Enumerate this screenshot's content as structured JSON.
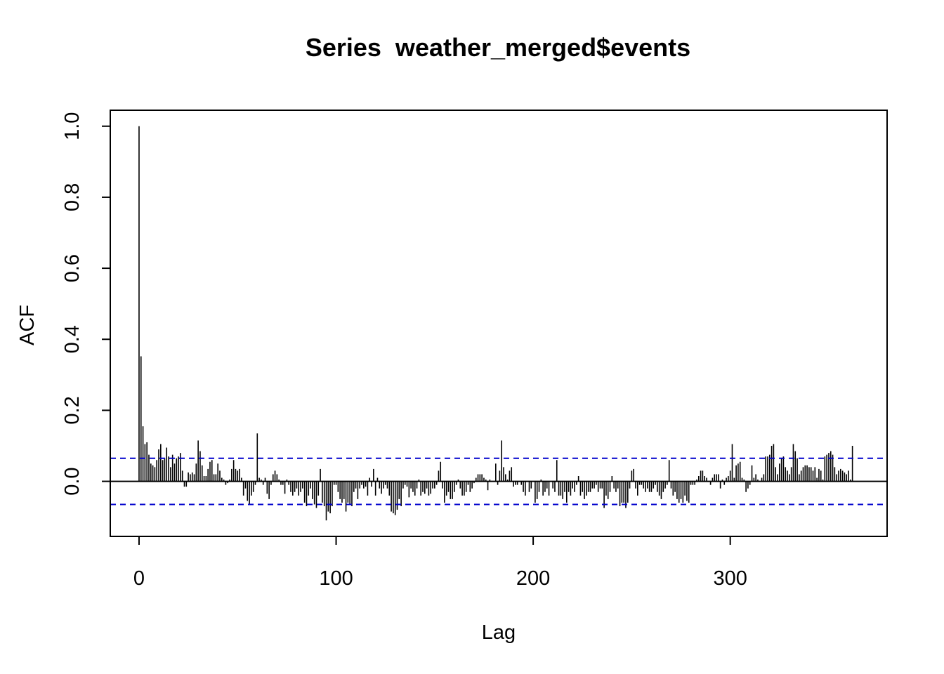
{
  "chart_data": {
    "type": "bar",
    "title": "Series  weather_merged$events",
    "xlabel": "Lag",
    "ylabel": "ACF",
    "xlim": [
      -14.6,
      379.6
    ],
    "ylim": [
      -0.155,
      1.045
    ],
    "x_ticks": [
      0,
      100,
      200,
      300
    ],
    "x_tick_labels": [
      "0",
      "100",
      "200",
      "300"
    ],
    "y_ticks": [
      0.0,
      0.2,
      0.4,
      0.6,
      0.8,
      1.0
    ],
    "y_tick_labels": [
      "0.0",
      "0.2",
      "0.4",
      "0.6",
      "0.8",
      "1.0"
    ],
    "confidence_interval": 0.065,
    "ci_color": "#0000cc",
    "bar_color": "#000000",
    "grid": false,
    "lags_start": 0,
    "values": [
      1.0,
      0.352,
      0.155,
      0.105,
      0.11,
      0.075,
      0.05,
      0.045,
      0.04,
      0.06,
      0.09,
      0.105,
      0.06,
      0.065,
      0.095,
      0.07,
      0.04,
      0.075,
      0.05,
      0.065,
      0.07,
      0.08,
      0.03,
      -0.015,
      -0.015,
      0.025,
      0.02,
      0.025,
      0.02,
      0.05,
      0.115,
      0.085,
      0.045,
      0.015,
      0.015,
      0.035,
      0.055,
      0.06,
      0.02,
      0.02,
      0.05,
      0.03,
      0.01,
      0.005,
      -0.01,
      -0.005,
      0.005,
      0.035,
      0.06,
      0.035,
      0.03,
      0.035,
      0.01,
      -0.04,
      -0.02,
      -0.055,
      -0.065,
      -0.04,
      -0.03,
      -0.01,
      0.135,
      0.01,
      0.005,
      -0.01,
      0.01,
      -0.035,
      -0.05,
      -0.01,
      0.02,
      0.03,
      0.02,
      0.005,
      -0.01,
      -0.01,
      -0.035,
      0.005,
      -0.01,
      -0.03,
      -0.04,
      -0.03,
      -0.02,
      -0.04,
      -0.03,
      -0.02,
      -0.06,
      -0.07,
      -0.04,
      -0.02,
      -0.05,
      -0.065,
      -0.075,
      -0.04,
      0.035,
      -0.06,
      -0.07,
      -0.11,
      -0.085,
      -0.09,
      -0.07,
      -0.01,
      -0.01,
      -0.03,
      -0.05,
      -0.06,
      -0.05,
      -0.085,
      -0.06,
      -0.065,
      -0.07,
      -0.03,
      -0.02,
      -0.05,
      -0.02,
      -0.01,
      -0.02,
      -0.015,
      -0.04,
      0.01,
      -0.015,
      0.035,
      -0.04,
      0.01,
      -0.02,
      -0.035,
      -0.02,
      -0.01,
      -0.02,
      -0.04,
      -0.085,
      -0.09,
      -0.095,
      -0.08,
      -0.05,
      -0.07,
      -0.02,
      -0.01,
      -0.015,
      -0.045,
      -0.02,
      -0.03,
      -0.04,
      -0.02,
      0.005,
      -0.04,
      -0.03,
      -0.035,
      -0.02,
      -0.04,
      -0.035,
      -0.02,
      -0.02,
      -0.01,
      0.03,
      0.055,
      -0.02,
      -0.06,
      -0.04,
      -0.03,
      -0.05,
      -0.05,
      -0.03,
      -0.01,
      0.005,
      -0.02,
      -0.04,
      -0.04,
      -0.03,
      -0.01,
      -0.03,
      -0.02,
      -0.005,
      0.01,
      0.02,
      0.02,
      0.02,
      0.01,
      0.005,
      -0.025,
      0.005,
      0.0,
      0.0,
      0.05,
      -0.01,
      0.03,
      0.115,
      0.04,
      0.02,
      0.005,
      0.03,
      0.04,
      -0.015,
      -0.01,
      -0.01,
      0.0,
      -0.01,
      -0.03,
      -0.04,
      0.0,
      -0.03,
      -0.02,
      0.0,
      -0.06,
      -0.05,
      -0.03,
      0.005,
      -0.04,
      -0.03,
      -0.02,
      -0.04,
      0.0,
      -0.02,
      -0.03,
      0.06,
      -0.04,
      -0.04,
      -0.05,
      -0.03,
      -0.06,
      -0.03,
      -0.04,
      -0.02,
      -0.03,
      -0.01,
      0.015,
      -0.04,
      -0.03,
      -0.05,
      -0.04,
      -0.03,
      -0.03,
      -0.02,
      -0.02,
      -0.01,
      -0.03,
      -0.02,
      -0.02,
      -0.075,
      -0.04,
      -0.05,
      -0.03,
      0.015,
      -0.02,
      -0.03,
      -0.02,
      -0.07,
      -0.06,
      -0.06,
      -0.075,
      -0.06,
      -0.02,
      0.03,
      0.035,
      -0.02,
      -0.04,
      -0.01,
      -0.01,
      -0.02,
      -0.03,
      -0.02,
      -0.03,
      -0.03,
      -0.02,
      -0.01,
      -0.03,
      -0.04,
      -0.05,
      -0.03,
      -0.02,
      -0.01,
      0.06,
      -0.02,
      -0.04,
      -0.03,
      -0.05,
      -0.06,
      -0.05,
      -0.06,
      -0.04,
      -0.055,
      -0.06,
      -0.01,
      -0.01,
      -0.01,
      0.005,
      0.015,
      0.03,
      0.03,
      0.015,
      0.01,
      0.0,
      -0.01,
      0.01,
      0.02,
      0.02,
      0.02,
      -0.02,
      0.005,
      -0.01,
      0.01,
      0.015,
      0.03,
      0.105,
      0.01,
      0.045,
      0.05,
      0.055,
      0.01,
      0.005,
      -0.03,
      -0.02,
      -0.01,
      0.045,
      0.01,
      0.02,
      0.005,
      0.0,
      0.01,
      0.02,
      0.07,
      0.07,
      0.075,
      0.1,
      0.105,
      0.04,
      0.02,
      0.05,
      0.065,
      0.07,
      0.04,
      0.03,
      0.02,
      0.04,
      0.105,
      0.085,
      0.065,
      0.02,
      0.03,
      0.04,
      0.045,
      0.045,
      0.04,
      0.04,
      0.03,
      0.04,
      0.01,
      0.035,
      0.03,
      0.005,
      0.07,
      0.075,
      0.08,
      0.085,
      0.075,
      0.04,
      0.02,
      0.03,
      0.035,
      0.03,
      0.025,
      0.02,
      0.03,
      0.005,
      0.1
    ]
  }
}
